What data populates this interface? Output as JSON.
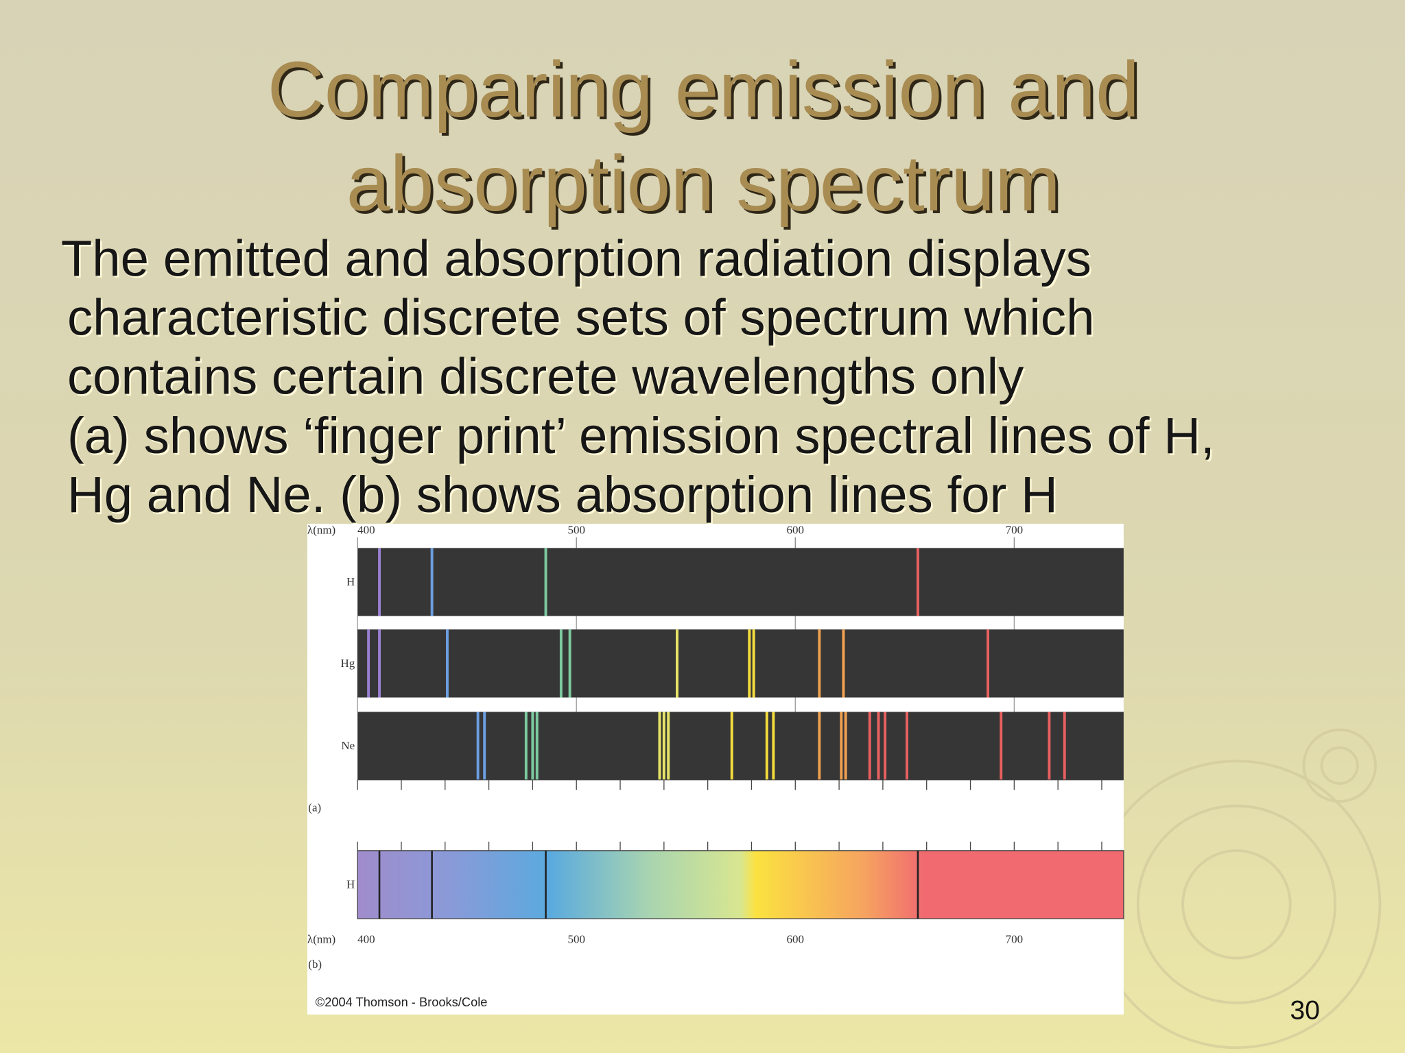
{
  "slide": {
    "title_lines": [
      "Comparing emission and",
      "absorption spectrum"
    ],
    "body_lines": [
      "The emitted and absorption radiation displays",
      "characteristic discrete sets of spectrum which",
      "contains certain discrete wavelengths only",
      "(a) shows ‘finger print’ emission spectral lines of H,",
      "Hg and Ne. (b) shows absorption lines for H"
    ],
    "page_number": "30"
  },
  "figure": {
    "xlabel": "λ(nm)",
    "xlim": [
      400,
      750
    ],
    "xticks": [
      400,
      500,
      600,
      700
    ],
    "xminorticks": [
      400,
      420,
      440,
      460,
      480,
      500,
      520,
      540,
      560,
      580,
      600,
      620,
      640,
      660,
      680,
      700,
      720,
      740
    ],
    "panel_labels": [
      "(a)",
      "(b)"
    ],
    "emission": [
      {
        "name": "H",
        "values": [
          410,
          434,
          486,
          656
        ]
      },
      {
        "name": "Hg",
        "values": [
          405,
          410,
          441,
          493,
          497,
          546,
          579,
          581,
          611,
          622,
          688
        ]
      },
      {
        "name": "Ne",
        "values": [
          455,
          458,
          477,
          480,
          482,
          538,
          540,
          542,
          571,
          587,
          590,
          611,
          621,
          623,
          634,
          638,
          641,
          651,
          694,
          716,
          723
        ]
      }
    ],
    "absorption": {
      "name": "H",
      "values": [
        410,
        434,
        486,
        656
      ]
    },
    "credit": "©2004 Thomson - Brooks/Cole"
  }
}
